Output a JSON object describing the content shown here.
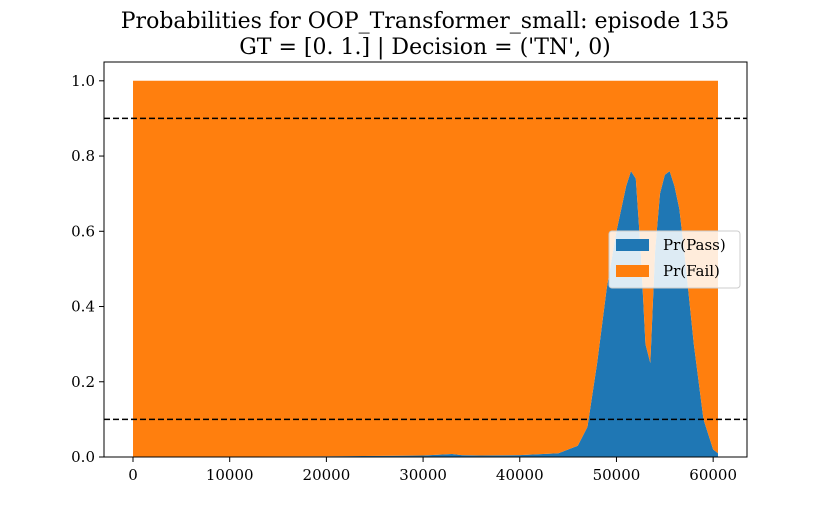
{
  "chart_data": {
    "type": "area",
    "title": "Probabilities for OOP_Transformer_small: episode 135",
    "subtitle": "GT = [0. 1.] | Decision = ('TN', 0)",
    "xlabel": "",
    "ylabel": "",
    "xlim": [
      -3000,
      63500
    ],
    "ylim": [
      0,
      1.05
    ],
    "x_ticks": [
      0,
      10000,
      20000,
      30000,
      40000,
      50000,
      60000
    ],
    "y_ticks": [
      0.0,
      0.2,
      0.4,
      0.6,
      0.8,
      1.0
    ],
    "x_tick_labels": [
      "0",
      "10000",
      "20000",
      "30000",
      "40000",
      "50000",
      "60000"
    ],
    "y_tick_labels": [
      "0.0",
      "0.2",
      "0.4",
      "0.6",
      "0.8",
      "1.0"
    ],
    "stacked": true,
    "legend_position": "center-right",
    "thresholds": [
      0.9,
      0.1
    ],
    "series": [
      {
        "name": "Pr(Pass)",
        "color": "#1f77b4",
        "x": [
          0,
          20000,
          30000,
          33000,
          34000,
          36000,
          40000,
          44000,
          46000,
          47000,
          48000,
          49000,
          50000,
          51000,
          51500,
          52000,
          52500,
          53000,
          53500,
          54000,
          54500,
          55000,
          55500,
          56000,
          56500,
          57000,
          58000,
          59000,
          60000,
          60500
        ],
        "values": [
          0.0,
          0.002,
          0.004,
          0.008,
          0.005,
          0.004,
          0.005,
          0.01,
          0.03,
          0.08,
          0.25,
          0.45,
          0.6,
          0.72,
          0.76,
          0.74,
          0.55,
          0.3,
          0.25,
          0.55,
          0.7,
          0.75,
          0.76,
          0.72,
          0.66,
          0.55,
          0.3,
          0.1,
          0.02,
          0.01
        ]
      },
      {
        "name": "Pr(Fail)",
        "color": "#ff7f0e",
        "x": [
          0,
          20000,
          30000,
          33000,
          34000,
          36000,
          40000,
          44000,
          46000,
          47000,
          48000,
          49000,
          50000,
          51000,
          51500,
          52000,
          52500,
          53000,
          53500,
          54000,
          54500,
          55000,
          55500,
          56000,
          56500,
          57000,
          58000,
          59000,
          60000,
          60500
        ],
        "values": [
          1.0,
          0.998,
          0.996,
          0.992,
          0.995,
          0.996,
          0.995,
          0.99,
          0.97,
          0.92,
          0.75,
          0.55,
          0.4,
          0.28,
          0.24,
          0.26,
          0.45,
          0.7,
          0.75,
          0.45,
          0.3,
          0.25,
          0.24,
          0.28,
          0.34,
          0.45,
          0.7,
          0.9,
          0.98,
          0.99
        ]
      }
    ]
  }
}
